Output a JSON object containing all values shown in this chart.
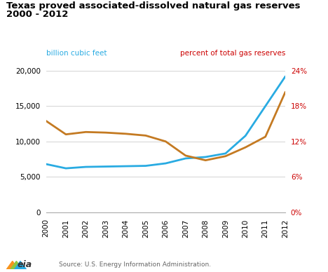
{
  "title_line1": "Texas proved associated-dissolved natural gas reserves",
  "title_line2": "2000 - 2012",
  "ylabel_left": "billion cubic feet",
  "ylabel_right": "percent of total gas reserves",
  "source": "Source: U.S. Energy Information Administration.",
  "years": [
    2000,
    2001,
    2002,
    2003,
    2004,
    2005,
    2006,
    2007,
    2008,
    2009,
    2010,
    2011,
    2012
  ],
  "bcf": [
    6800,
    6200,
    6400,
    6450,
    6500,
    6550,
    6900,
    7600,
    7800,
    8300,
    10800,
    15000,
    19200
  ],
  "pct": [
    15.5,
    13.2,
    13.6,
    13.5,
    13.3,
    13.0,
    12.0,
    9.6,
    8.8,
    9.5,
    11.0,
    12.8,
    20.4
  ],
  "line_color_bcf": "#29ABE2",
  "line_color_pct": "#C47A22",
  "ylim_left": [
    0,
    20000
  ],
  "ylim_right": [
    0,
    24
  ],
  "yticks_left": [
    0,
    5000,
    10000,
    15000,
    20000
  ],
  "yticks_right": [
    0,
    6,
    12,
    18,
    24
  ],
  "ytick_labels_left": [
    "0",
    "5,000",
    "10,000",
    "15,000",
    "20,000"
  ],
  "ytick_labels_right": [
    "0%",
    "6%",
    "12%",
    "18%",
    "24%"
  ],
  "title_fontsize": 9.5,
  "left_label_color": "#29ABE2",
  "axis_label_fontsize": 7.5,
  "tick_fontsize": 7.5,
  "line_width": 2.0,
  "background_color": "#FFFFFF",
  "grid_color": "#CCCCCC",
  "right_label_color": "#CC0000",
  "title_color": "#000000",
  "source_color": "#666666"
}
